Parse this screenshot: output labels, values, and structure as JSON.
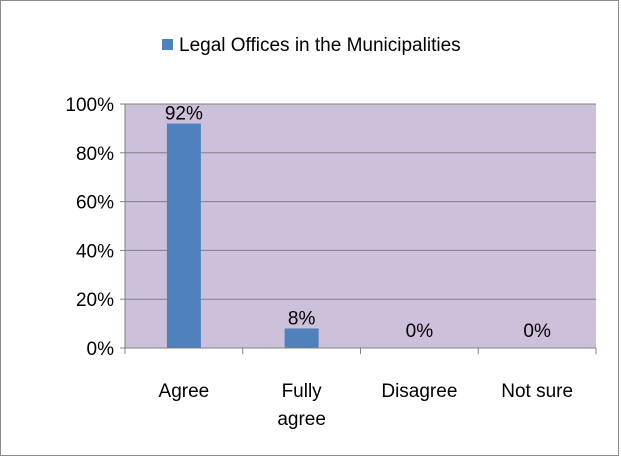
{
  "chart_data": {
    "type": "bar",
    "categories": [
      "Agree",
      "Fully agree",
      "Disagree",
      "Not sure"
    ],
    "category_lines": [
      [
        "Agree"
      ],
      [
        "Fully",
        "agree"
      ],
      [
        "Disagree"
      ],
      [
        "Not sure"
      ]
    ],
    "series": [
      {
        "name": "Legal Offices in the Municipalities",
        "values": [
          92,
          8,
          0,
          0
        ],
        "color": "#4f81bd"
      }
    ],
    "data_labels": [
      "92%",
      "8%",
      "0%",
      "0%"
    ],
    "ylim": [
      0,
      100
    ],
    "yticks": [
      0,
      20,
      40,
      60,
      80,
      100
    ],
    "ytick_labels": [
      "0%",
      "20%",
      "40%",
      "60%",
      "80%",
      "100%"
    ],
    "title": "",
    "xlabel": "",
    "ylabel": "",
    "grid": true,
    "legend_position": "top",
    "plot_background": "#ccc0da",
    "gridline_color": "#808080"
  }
}
